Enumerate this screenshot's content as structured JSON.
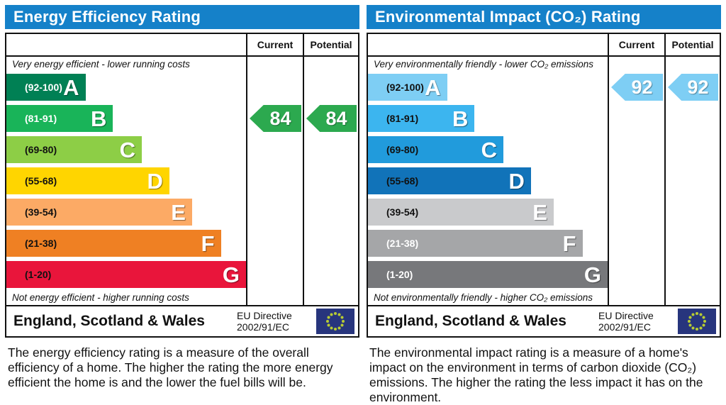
{
  "colors": {
    "header_blue": "#1581c9",
    "table_border": "#111111",
    "eu_flag_blue": "#27357d",
    "eu_flag_stars": "#b8cc33",
    "eer_arrow_green": "#2ca94f",
    "eir_arrow_blue": "#7ecef4"
  },
  "panels": [
    {
      "title": "Energy Efficiency Rating",
      "header_current": "Current",
      "header_potential": "Potential",
      "top_caption": "Very energy efficient - lower running costs",
      "bottom_caption": "Not energy efficient - higher running costs",
      "bands": [
        {
          "letter": "A",
          "range": "(92-100)",
          "color": "#008054",
          "range_color": "#ffffff",
          "width_pct": 33
        },
        {
          "letter": "B",
          "range": "(81-91)",
          "color": "#19b459",
          "range_color": "#ffffff",
          "width_pct": 44.5
        },
        {
          "letter": "C",
          "range": "(69-80)",
          "color": "#8dce46",
          "range_color": "#111111",
          "width_pct": 56.5
        },
        {
          "letter": "D",
          "range": "(55-68)",
          "color": "#ffd500",
          "range_color": "#111111",
          "width_pct": 68
        },
        {
          "letter": "E",
          "range": "(39-54)",
          "color": "#fcaa65",
          "range_color": "#111111",
          "width_pct": 77.5
        },
        {
          "letter": "F",
          "range": "(21-38)",
          "color": "#ef8023",
          "range_color": "#111111",
          "width_pct": 89.5
        },
        {
          "letter": "G",
          "range": "(1-20)",
          "color": "#e9153b",
          "range_color": "#111111",
          "width_pct": 100
        }
      ],
      "current": {
        "value": "84",
        "band_index": 1,
        "color": "#2ca94f"
      },
      "potential": {
        "value": "84",
        "band_index": 1,
        "color": "#2ca94f"
      },
      "footer_region": "England, Scotland & Wales",
      "directive_line1": "EU Directive",
      "directive_line2": "2002/91/EC",
      "description": "The energy efficiency rating is a measure of the overall efficiency of a home. The higher the rating the more energy efficient the home is and the lower the fuel bills will be."
    },
    {
      "title": "Environmental Impact (CO₂) Rating",
      "header_current": "Current",
      "header_potential": "Potential",
      "top_caption": "Very environmentally friendly - lower CO₂ emissions",
      "bottom_caption": "Not environmentally friendly - higher CO₂ emissions",
      "bands": [
        {
          "letter": "A",
          "range": "(92-100)",
          "color": "#7ecef4",
          "range_color": "#111111",
          "width_pct": 33
        },
        {
          "letter": "B",
          "range": "(81-91)",
          "color": "#3cb5ef",
          "range_color": "#111111",
          "width_pct": 44.5
        },
        {
          "letter": "C",
          "range": "(69-80)",
          "color": "#219bdc",
          "range_color": "#111111",
          "width_pct": 56.5
        },
        {
          "letter": "D",
          "range": "(55-68)",
          "color": "#1173b9",
          "range_color": "#111111",
          "width_pct": 68
        },
        {
          "letter": "E",
          "range": "(39-54)",
          "color": "#c9cacc",
          "range_color": "#111111",
          "width_pct": 77.5
        },
        {
          "letter": "F",
          "range": "(21-38)",
          "color": "#a5a6a8",
          "range_color": "#ffffff",
          "width_pct": 89.5
        },
        {
          "letter": "G",
          "range": "(1-20)",
          "color": "#77787b",
          "range_color": "#ffffff",
          "width_pct": 100
        }
      ],
      "current": {
        "value": "92",
        "band_index": 0,
        "color": "#7ecef4"
      },
      "potential": {
        "value": "92",
        "band_index": 0,
        "color": "#7ecef4"
      },
      "footer_region": "England, Scotland & Wales",
      "directive_line1": "EU Directive",
      "directive_line2": "2002/91/EC",
      "description": "The environmental impact rating is a measure of a home's impact on the environment in terms of carbon dioxide (CO₂) emissions. The higher the rating the less impact it has on the environment."
    }
  ],
  "chart_data": [
    {
      "type": "bar",
      "title": "Energy Efficiency Rating",
      "categories": [
        "A (92-100)",
        "B (81-91)",
        "C (69-80)",
        "D (55-68)",
        "E (39-54)",
        "F (21-38)",
        "G (1-20)"
      ],
      "values": [
        33,
        44.5,
        56.5,
        68,
        77.5,
        89.5,
        100
      ],
      "series": [
        {
          "name": "Current",
          "value": 84,
          "band": "B"
        },
        {
          "name": "Potential",
          "value": 84,
          "band": "B"
        }
      ],
      "xlabel": "",
      "ylabel": "",
      "legend": [
        "Current",
        "Potential"
      ],
      "annotations": [
        "Very energy efficient - lower running costs",
        "Not energy efficient - higher running costs",
        "England, Scotland & Wales",
        "EU Directive 2002/91/EC"
      ]
    },
    {
      "type": "bar",
      "title": "Environmental Impact (CO₂) Rating",
      "categories": [
        "A (92-100)",
        "B (81-91)",
        "C (69-80)",
        "D (55-68)",
        "E (39-54)",
        "F (21-38)",
        "G (1-20)"
      ],
      "values": [
        33,
        44.5,
        56.5,
        68,
        77.5,
        89.5,
        100
      ],
      "series": [
        {
          "name": "Current",
          "value": 92,
          "band": "A"
        },
        {
          "name": "Potential",
          "value": 92,
          "band": "A"
        }
      ],
      "xlabel": "",
      "ylabel": "",
      "legend": [
        "Current",
        "Potential"
      ],
      "annotations": [
        "Very environmentally friendly - lower CO₂ emissions",
        "Not environmentally friendly - higher CO₂ emissions",
        "England, Scotland & Wales",
        "EU Directive 2002/91/EC"
      ]
    }
  ]
}
